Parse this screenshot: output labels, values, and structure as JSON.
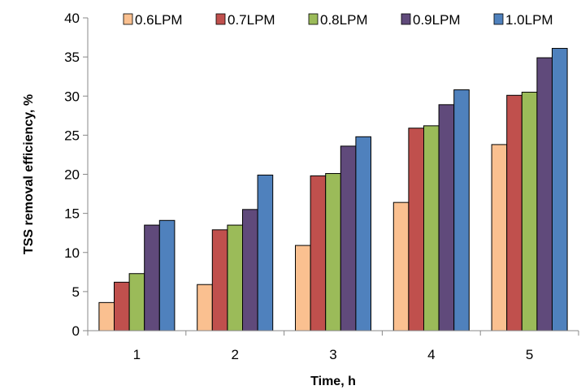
{
  "chart_data": {
    "type": "bar",
    "title": "",
    "xlabel": "Time, h",
    "ylabel": "TSS removal efficiency, %",
    "categories": [
      "1",
      "2",
      "3",
      "4",
      "5"
    ],
    "ylim": [
      0,
      40
    ],
    "yticks": [
      0,
      5,
      10,
      15,
      20,
      25,
      30,
      35,
      40
    ],
    "grid": false,
    "legend_position": "top",
    "series": [
      {
        "name": "0.6LPM",
        "color": "#FAC090",
        "values": [
          3.6,
          5.9,
          10.9,
          16.4,
          23.8
        ]
      },
      {
        "name": "0.7LPM",
        "color": "#C0504D",
        "values": [
          6.2,
          12.9,
          19.8,
          25.9,
          30.1
        ]
      },
      {
        "name": "0.8LPM",
        "color": "#9BBB59",
        "values": [
          7.3,
          13.5,
          20.1,
          26.2,
          30.5
        ]
      },
      {
        "name": "0.9LPM",
        "color": "#604A7B",
        "values": [
          13.5,
          15.5,
          23.6,
          28.9,
          34.9
        ]
      },
      {
        "name": "1.0LPM",
        "color": "#4F81BD",
        "values": [
          14.1,
          19.9,
          24.8,
          30.8,
          36.1
        ]
      }
    ]
  }
}
